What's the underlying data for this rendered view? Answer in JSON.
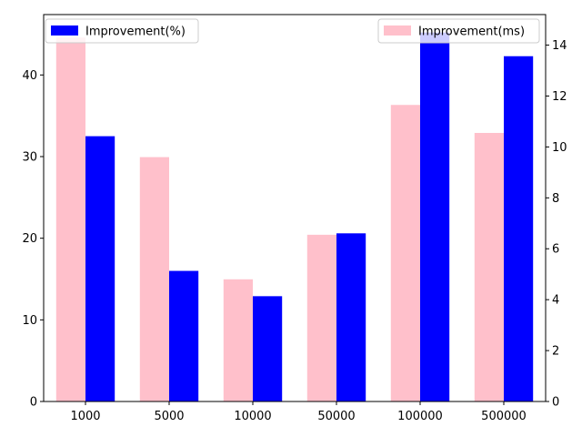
{
  "chart_data": {
    "type": "bar",
    "categories": [
      "1000",
      "5000",
      "10000",
      "50000",
      "100000",
      "500000"
    ],
    "series": [
      {
        "name": "Improvement(%)",
        "axis": "left",
        "color": "#0000ff",
        "values": [
          32.5,
          16.0,
          12.9,
          20.6,
          45.2,
          42.3
        ]
      },
      {
        "name": "Improvement(ms)",
        "axis": "right",
        "color": "#ffc0cb",
        "values": [
          14.3,
          9.6,
          4.8,
          6.55,
          11.65,
          10.55
        ]
      }
    ],
    "y_left": {
      "ylim": [
        0,
        47.4
      ],
      "ticks": [
        0,
        10,
        20,
        30,
        40
      ]
    },
    "y_right": {
      "ylim": [
        0,
        15.2
      ],
      "ticks": [
        0,
        2,
        4,
        6,
        8,
        10,
        12,
        14
      ]
    },
    "legend_left_placement": "top-left",
    "legend_right_placement": "top-right",
    "grid": false
  }
}
